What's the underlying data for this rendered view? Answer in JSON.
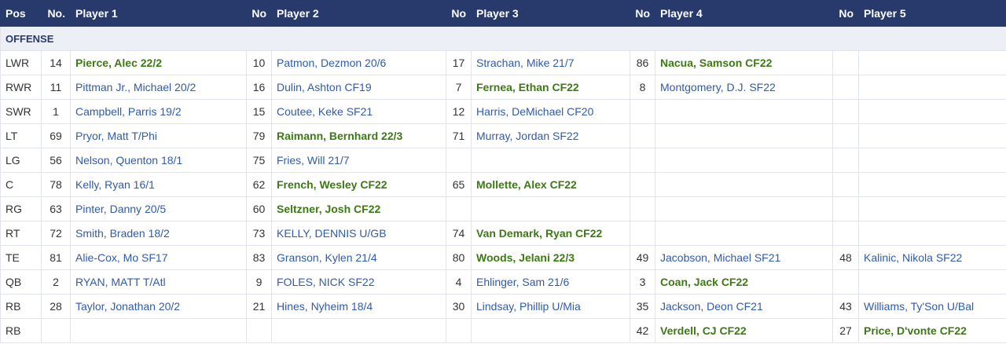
{
  "table": {
    "header": [
      "Pos",
      "No.",
      "Player 1",
      "No",
      "Player 2",
      "No",
      "Player 3",
      "No",
      "Player 4",
      "No",
      "Player 5"
    ],
    "section": "OFFENSE",
    "rows": [
      {
        "pos": "LWR",
        "players": [
          {
            "no": 14,
            "name": "Pierce, Alec 22/2",
            "bold": true
          },
          {
            "no": 10,
            "name": "Patmon, Dezmon 20/6",
            "bold": false
          },
          {
            "no": 17,
            "name": "Strachan, Mike 21/7",
            "bold": false
          },
          {
            "no": 86,
            "name": "Nacua, Samson CF22",
            "bold": true
          },
          null
        ]
      },
      {
        "pos": "RWR",
        "players": [
          {
            "no": 11,
            "name": "Pittman Jr., Michael 20/2",
            "bold": false
          },
          {
            "no": 16,
            "name": "Dulin, Ashton CF19",
            "bold": false
          },
          {
            "no": 7,
            "name": "Fernea, Ethan CF22",
            "bold": true
          },
          {
            "no": 8,
            "name": "Montgomery, D.J. SF22",
            "bold": false
          },
          null
        ]
      },
      {
        "pos": "SWR",
        "players": [
          {
            "no": 1,
            "name": "Campbell, Parris 19/2",
            "bold": false
          },
          {
            "no": 15,
            "name": "Coutee, Keke SF21",
            "bold": false
          },
          {
            "no": 12,
            "name": "Harris, DeMichael CF20",
            "bold": false
          },
          null,
          null
        ]
      },
      {
        "pos": "LT",
        "players": [
          {
            "no": 69,
            "name": "Pryor, Matt T/Phi",
            "bold": false
          },
          {
            "no": 79,
            "name": "Raimann, Bernhard 22/3",
            "bold": true
          },
          {
            "no": 71,
            "name": "Murray, Jordan SF22",
            "bold": false
          },
          null,
          null
        ]
      },
      {
        "pos": "LG",
        "players": [
          {
            "no": 56,
            "name": "Nelson, Quenton 18/1",
            "bold": false
          },
          {
            "no": 75,
            "name": "Fries, Will 21/7",
            "bold": false
          },
          null,
          null,
          null
        ]
      },
      {
        "pos": "C",
        "players": [
          {
            "no": 78,
            "name": "Kelly, Ryan 16/1",
            "bold": false
          },
          {
            "no": 62,
            "name": "French, Wesley CF22",
            "bold": true
          },
          {
            "no": 65,
            "name": "Mollette, Alex CF22",
            "bold": true
          },
          null,
          null
        ]
      },
      {
        "pos": "RG",
        "players": [
          {
            "no": 63,
            "name": "Pinter, Danny 20/5",
            "bold": false
          },
          {
            "no": 60,
            "name": "Seltzner, Josh CF22",
            "bold": true
          },
          null,
          null,
          null
        ]
      },
      {
        "pos": "RT",
        "players": [
          {
            "no": 72,
            "name": "Smith, Braden 18/2",
            "bold": false
          },
          {
            "no": 73,
            "name": "KELLY, DENNIS U/GB",
            "bold": false
          },
          {
            "no": 74,
            "name": "Van Demark, Ryan CF22",
            "bold": true
          },
          null,
          null
        ]
      },
      {
        "pos": "TE",
        "players": [
          {
            "no": 81,
            "name": "Alie-Cox, Mo SF17",
            "bold": false
          },
          {
            "no": 83,
            "name": "Granson, Kylen 21/4",
            "bold": false
          },
          {
            "no": 80,
            "name": "Woods, Jelani 22/3",
            "bold": true
          },
          {
            "no": 49,
            "name": "Jacobson, Michael SF21",
            "bold": false
          },
          {
            "no": 48,
            "name": "Kalinic, Nikola SF22",
            "bold": false
          }
        ]
      },
      {
        "pos": "QB",
        "players": [
          {
            "no": 2,
            "name": "RYAN, MATT T/Atl",
            "bold": false
          },
          {
            "no": 9,
            "name": "FOLES, NICK SF22",
            "bold": false
          },
          {
            "no": 4,
            "name": "Ehlinger, Sam 21/6",
            "bold": false
          },
          {
            "no": 3,
            "name": "Coan, Jack CF22",
            "bold": true
          },
          null
        ]
      },
      {
        "pos": "RB",
        "players": [
          {
            "no": 28,
            "name": "Taylor, Jonathan 20/2",
            "bold": false
          },
          {
            "no": 21,
            "name": "Hines, Nyheim 18/4",
            "bold": false
          },
          {
            "no": 30,
            "name": "Lindsay, Phillip U/Mia",
            "bold": false
          },
          {
            "no": 35,
            "name": "Jackson, Deon CF21",
            "bold": false
          },
          {
            "no": 43,
            "name": "Williams, Ty'Son U/Bal",
            "bold": false
          }
        ]
      },
      {
        "pos": "RB",
        "players": [
          null,
          null,
          null,
          {
            "no": 42,
            "name": "Verdell, CJ CF22",
            "bold": true
          },
          {
            "no": 27,
            "name": "Price, D'vonte CF22",
            "bold": true
          }
        ]
      }
    ]
  }
}
